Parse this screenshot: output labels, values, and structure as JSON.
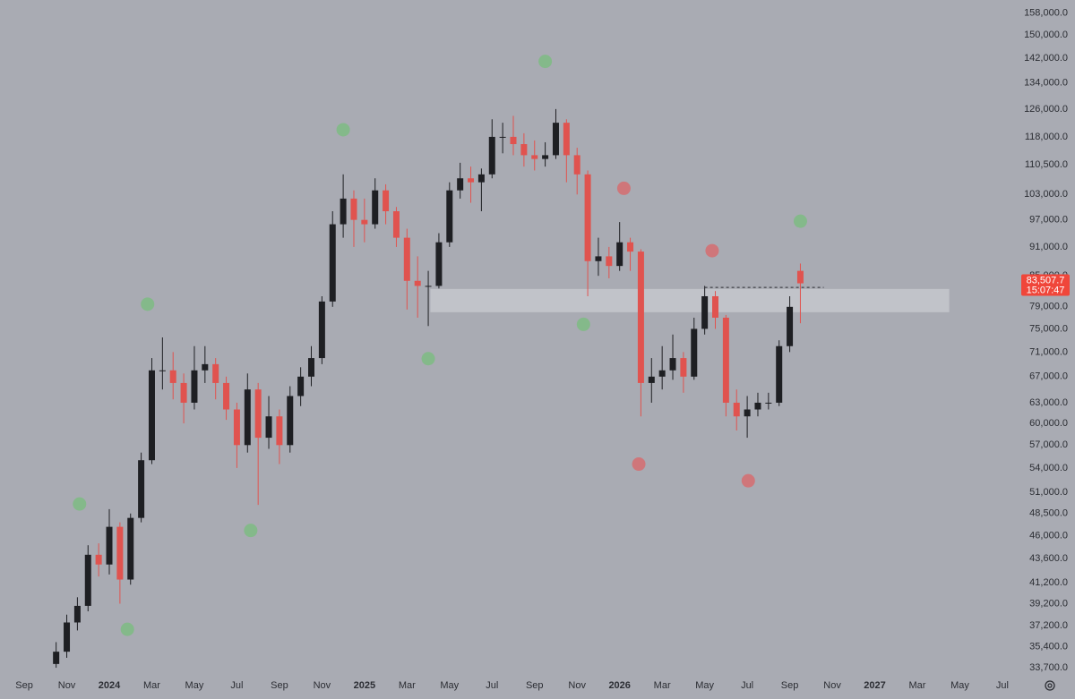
{
  "chart_data": {
    "type": "candlestick",
    "x": [
      1.5,
      2,
      2.5,
      3,
      3.5,
      4,
      4.5,
      5,
      5.5,
      6,
      6.5,
      7,
      7.5,
      8,
      8.5,
      9,
      9.5,
      10,
      10.5,
      11,
      11.5,
      12,
      12.5,
      13,
      13.5,
      14,
      14.5,
      15,
      15.5,
      16,
      16.5,
      17,
      17.5,
      18,
      18.5,
      19,
      19.5,
      20,
      20.5,
      21,
      21.5,
      22,
      22.5,
      23,
      23.5,
      24,
      24.5,
      25,
      25.5,
      26,
      26.5,
      27,
      27.5,
      28,
      28.5,
      29,
      29.5,
      30,
      30.5,
      31,
      31.5,
      32,
      32.5,
      33,
      33.5,
      34,
      34.5,
      35,
      35.5,
      36,
      36.5
    ],
    "open": [
      34000,
      35000,
      37500,
      39000,
      44000,
      43000,
      47000,
      41500,
      48000,
      55000,
      68000,
      68000,
      66000,
      63000,
      68000,
      69000,
      66000,
      62000,
      57000,
      65000,
      58000,
      61000,
      57000,
      64000,
      67000,
      70000,
      80000,
      96000,
      102000,
      97000,
      96000,
      104000,
      99000,
      93000,
      84000,
      83000,
      83000,
      92000,
      104000,
      107000,
      106000,
      108000,
      118000,
      118000,
      116000,
      113000,
      112000,
      113000,
      122000,
      113000,
      108000,
      88000,
      89000,
      87000,
      92000,
      90000,
      66000,
      67000,
      68000,
      70000,
      67000,
      75000,
      81000,
      77000,
      63000,
      61000,
      62000,
      63000,
      63000,
      72000,
      86000
    ],
    "high": [
      35800,
      38200,
      39800,
      45000,
      45200,
      49000,
      47500,
      48500,
      56000,
      70000,
      73500,
      71000,
      67500,
      72000,
      72000,
      70000,
      67000,
      63000,
      67500,
      66000,
      64000,
      62000,
      65500,
      68500,
      72000,
      81000,
      99000,
      108000,
      104000,
      102000,
      107000,
      105500,
      100000,
      95000,
      89000,
      86000,
      94000,
      106000,
      111000,
      110000,
      109500,
      123000,
      122000,
      124000,
      119000,
      117000,
      116500,
      126000,
      123000,
      115000,
      109000,
      93000,
      91000,
      96500,
      93000,
      90500,
      70000,
      72000,
      74000,
      71000,
      77000,
      83000,
      82000,
      77500,
      65000,
      64000,
      64500,
      64500,
      73000,
      81000,
      87500
    ],
    "low": [
      33700,
      34500,
      36800,
      38500,
      41800,
      42000,
      39200,
      41000,
      47500,
      54500,
      65000,
      63500,
      60000,
      62000,
      66000,
      63500,
      60500,
      54000,
      56000,
      49500,
      56500,
      54500,
      56000,
      62500,
      65500,
      69000,
      79000,
      93000,
      91000,
      92000,
      95000,
      96000,
      91000,
      78500,
      77000,
      75500,
      82500,
      91000,
      102000,
      101000,
      99000,
      107000,
      113500,
      113000,
      110000,
      109000,
      110000,
      112000,
      106000,
      103000,
      81000,
      85000,
      84500,
      86000,
      86000,
      61000,
      63000,
      65000,
      66500,
      64500,
      66500,
      74000,
      75000,
      61000,
      59000,
      58000,
      61000,
      62000,
      62500,
      71000,
      76000
    ],
    "close": [
      35000,
      37500,
      39000,
      44000,
      43000,
      47000,
      41500,
      48000,
      55000,
      68000,
      68000,
      66000,
      63000,
      68000,
      69000,
      66000,
      62000,
      57000,
      65000,
      58000,
      61000,
      57000,
      64000,
      67000,
      70000,
      80000,
      96000,
      102000,
      97000,
      96000,
      104000,
      99000,
      93000,
      84000,
      83000,
      83000,
      92000,
      104000,
      107000,
      106000,
      108000,
      118000,
      118000,
      116000,
      113000,
      112000,
      113000,
      122000,
      113000,
      108000,
      88000,
      89000,
      87000,
      92000,
      90000,
      66000,
      67000,
      68000,
      70000,
      67000,
      75000,
      81000,
      77000,
      63000,
      61000,
      62000,
      63000,
      63000,
      72000,
      79000,
      83507.7
    ],
    "up_color": "#1e1f23",
    "down_color": "#e0534f",
    "markers": [
      {
        "x": 2.6,
        "value": 49600,
        "color": "#84b98a"
      },
      {
        "x": 4.85,
        "value": 36900,
        "color": "#84b98a"
      },
      {
        "x": 5.8,
        "value": 79500,
        "color": "#84b98a"
      },
      {
        "x": 10.65,
        "value": 46600,
        "color": "#84b98a"
      },
      {
        "x": 15,
        "value": 120000,
        "color": "#84b98a"
      },
      {
        "x": 19,
        "value": 69900,
        "color": "#84b98a"
      },
      {
        "x": 24.5,
        "value": 141000,
        "color": "#84b98a"
      },
      {
        "x": 26.3,
        "value": 75800,
        "color": "#84b98a"
      },
      {
        "x": 28.2,
        "value": 104500,
        "color": "#cf767a"
      },
      {
        "x": 28.9,
        "value": 54500,
        "color": "#cf767a"
      },
      {
        "x": 32.35,
        "value": 90200,
        "color": "#cf767a"
      },
      {
        "x": 34.05,
        "value": 52400,
        "color": "#cf767a"
      },
      {
        "x": 36.5,
        "value": 96700,
        "color": "#84b98a"
      }
    ],
    "zone": {
      "x": [
        19.1,
        43.5
      ],
      "values": [
        78000,
        82400
      ],
      "color": "#c5c7cd"
    },
    "level_line": {
      "x": [
        32,
        37.6
      ],
      "value": 82700
    },
    "last_price": {
      "value": 83507.7,
      "label": "83,507.7"
    },
    "countdown": "15:07:47",
    "label_color": "#f0463a",
    "log_scale": true,
    "xlim": [
      -1.14,
      46.55
    ],
    "ylim": [
      33000,
      163000
    ],
    "xticks": [
      {
        "value": 0,
        "label": "Sep"
      },
      {
        "value": 2,
        "label": "Nov"
      },
      {
        "value": 4,
        "label": "2024"
      },
      {
        "value": 6,
        "label": "Mar"
      },
      {
        "value": 8,
        "label": "May"
      },
      {
        "value": 10,
        "label": "Jul"
      },
      {
        "value": 12,
        "label": "Sep"
      },
      {
        "value": 14,
        "label": "Nov"
      },
      {
        "value": 16,
        "label": "2025"
      },
      {
        "value": 18,
        "label": "Mar"
      },
      {
        "value": 20,
        "label": "May"
      },
      {
        "value": 22,
        "label": "Jul"
      },
      {
        "value": 24,
        "label": "Sep"
      },
      {
        "value": 26,
        "label": "Nov"
      },
      {
        "value": 28,
        "label": "2026"
      },
      {
        "value": 30,
        "label": "Mar"
      },
      {
        "value": 32,
        "label": "May"
      },
      {
        "value": 34,
        "label": "Jul"
      },
      {
        "value": 36,
        "label": "Sep"
      },
      {
        "value": 38,
        "label": "Nov"
      },
      {
        "value": 40,
        "label": "2027"
      },
      {
        "value": 42,
        "label": "Mar"
      },
      {
        "value": 44,
        "label": "May"
      },
      {
        "value": 46,
        "label": "Jul"
      }
    ],
    "yticks": [
      {
        "value": 33700,
        "label": "33,700.0"
      },
      {
        "value": 35400,
        "label": "35,400.0"
      },
      {
        "value": 37200,
        "label": "37,200.0"
      },
      {
        "value": 39200,
        "label": "39,200.0"
      },
      {
        "value": 41200,
        "label": "41,200.0"
      },
      {
        "value": 43600,
        "label": "43,600.0"
      },
      {
        "value": 46000,
        "label": "46,000.0"
      },
      {
        "value": 48500,
        "label": "48,500.0"
      },
      {
        "value": 51000,
        "label": "51,000.0"
      },
      {
        "value": 54000,
        "label": "54,000.0"
      },
      {
        "value": 57000,
        "label": "57,000.0"
      },
      {
        "value": 60000,
        "label": "60,000.0"
      },
      {
        "value": 63000,
        "label": "63,000.0"
      },
      {
        "value": 67000,
        "label": "67,000.0"
      },
      {
        "value": 71000,
        "label": "71,000.0"
      },
      {
        "value": 75000,
        "label": "75,000.0"
      },
      {
        "value": 79000,
        "label": "79,000.0"
      },
      {
        "value": 85000,
        "label": "85,000.0"
      },
      {
        "value": 91000,
        "label": "91,000.0"
      },
      {
        "value": 97000,
        "label": "97,000.0"
      },
      {
        "value": 103000,
        "label": "103,000.0"
      },
      {
        "value": 110500,
        "label": "110,500.0"
      },
      {
        "value": 118000,
        "label": "118,000.0"
      },
      {
        "value": 126000,
        "label": "126,000.0"
      },
      {
        "value": 134000,
        "label": "134,000.0"
      },
      {
        "value": 142000,
        "label": "142,000.0"
      },
      {
        "value": 150000,
        "label": "150,000.0"
      },
      {
        "value": 158000,
        "label": "158,000.0"
      }
    ]
  }
}
